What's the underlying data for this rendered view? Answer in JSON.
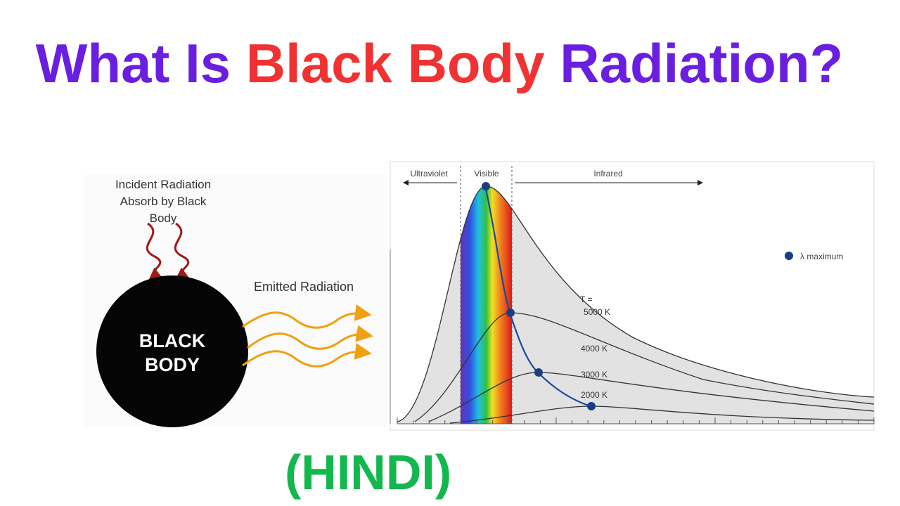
{
  "title": {
    "part1": "What Is",
    "part2": "Black Body",
    "part3": "Radiation?"
  },
  "diagram": {
    "incident_label": [
      "Incident Radiation",
      "Absorb by Black",
      "Body"
    ],
    "body_label": [
      "BLACK",
      "BODY"
    ],
    "emitted_label": "Emitted Radiation"
  },
  "spectrum": {
    "regions": [
      "Ultraviolet",
      "Visible",
      "Infrared"
    ],
    "legend": "λ maximum",
    "curves": [
      "T =",
      "5000 K",
      "4000 K",
      "3000 K",
      "2000 K"
    ]
  },
  "subtitle": "(HINDI)"
}
